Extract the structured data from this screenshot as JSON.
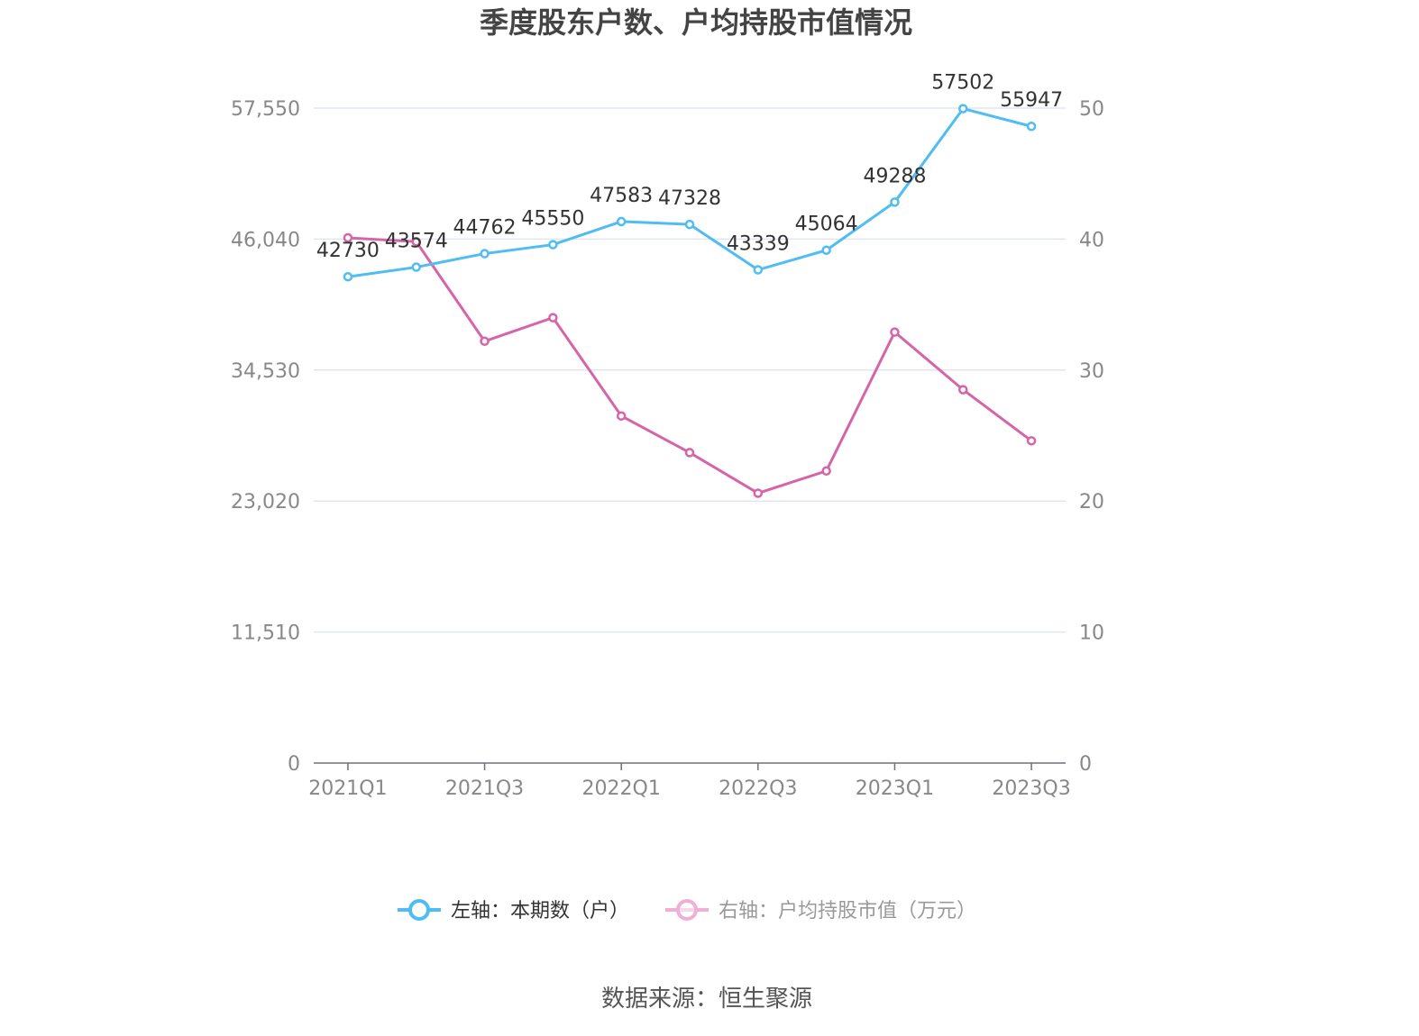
{
  "chart_data": {
    "type": "line",
    "title": "季度股东户数、户均持股市值情况",
    "categories": [
      "2021Q1",
      "2021Q2",
      "2021Q3",
      "2021Q4",
      "2022Q1",
      "2022Q2",
      "2022Q3",
      "2022Q4",
      "2023Q1",
      "2023Q2",
      "2023Q3"
    ],
    "x_tick_labels": [
      "2021Q1",
      "2021Q3",
      "2022Q1",
      "2022Q3",
      "2023Q1",
      "2023Q3"
    ],
    "left_axis": {
      "ylim": [
        0,
        57550
      ],
      "ticks": [
        "0",
        "11,510",
        "23,020",
        "34,530",
        "46,040",
        "57,550"
      ],
      "tick_values": [
        0,
        11510,
        23020,
        34530,
        46040,
        57550
      ]
    },
    "right_axis": {
      "ylim": [
        0,
        50
      ],
      "ticks": [
        "0",
        "10",
        "20",
        "30",
        "40",
        "50"
      ],
      "tick_values": [
        0,
        10,
        20,
        30,
        40,
        50
      ]
    },
    "grid": true,
    "legend_position": "bottom",
    "series": [
      {
        "name": "左轴：本期数（户）",
        "axis": "left",
        "color": "#4fbcf3",
        "values": [
          42730,
          43574,
          44762,
          45550,
          47583,
          47328,
          43339,
          45064,
          49288,
          57502,
          55947
        ],
        "labels": [
          "42730",
          "43574",
          "44762",
          "45550",
          "47583",
          "47328",
          "43339",
          "45064",
          "49288",
          "57502",
          "55947"
        ]
      },
      {
        "name": "右轴：户均持股市值（万元）",
        "axis": "right",
        "color": "#d664a8",
        "values": [
          40.1,
          39.8,
          32.2,
          34.0,
          26.5,
          23.7,
          20.6,
          22.3,
          32.9,
          28.5,
          24.6
        ]
      }
    ],
    "source": "数据来源：恒生聚源"
  }
}
